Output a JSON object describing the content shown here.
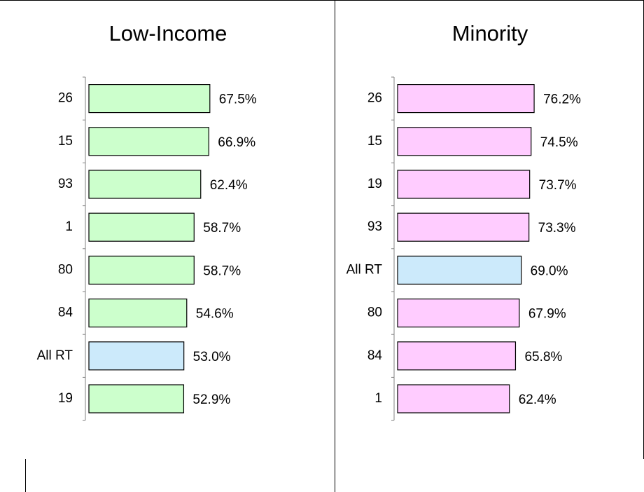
{
  "chart_data": [
    {
      "type": "bar",
      "orientation": "horizontal",
      "title": "Low-Income",
      "categories": [
        "26",
        "15",
        "93",
        "1",
        "80",
        "84",
        "All RT",
        "19"
      ],
      "values": [
        67.5,
        66.9,
        62.4,
        58.7,
        58.7,
        54.6,
        53.0,
        52.9
      ],
      "value_labels": [
        "67.5%",
        "66.9%",
        "62.4%",
        "58.7%",
        "58.7%",
        "54.6%",
        "53.0%",
        "52.9%"
      ],
      "colors": [
        "#ccffcc",
        "#ccffcc",
        "#ccffcc",
        "#ccffcc",
        "#ccffcc",
        "#ccffcc",
        "#cceafb",
        "#ccffcc"
      ],
      "xlim": [
        0,
        100
      ]
    },
    {
      "type": "bar",
      "orientation": "horizontal",
      "title": "Minority",
      "categories": [
        "26",
        "15",
        "19",
        "93",
        "All RT",
        "80",
        "84",
        "1"
      ],
      "values": [
        76.2,
        74.5,
        73.7,
        73.3,
        69.0,
        67.9,
        65.8,
        62.4
      ],
      "value_labels": [
        "76.2%",
        "74.5%",
        "73.7%",
        "73.3%",
        "69.0%",
        "67.9%",
        "65.8%",
        "62.4%"
      ],
      "colors": [
        "#ffccff",
        "#ffccff",
        "#ffccff",
        "#ffccff",
        "#cceafb",
        "#ffccff",
        "#ffccff",
        "#ffccff"
      ],
      "xlim": [
        0,
        100
      ]
    }
  ]
}
